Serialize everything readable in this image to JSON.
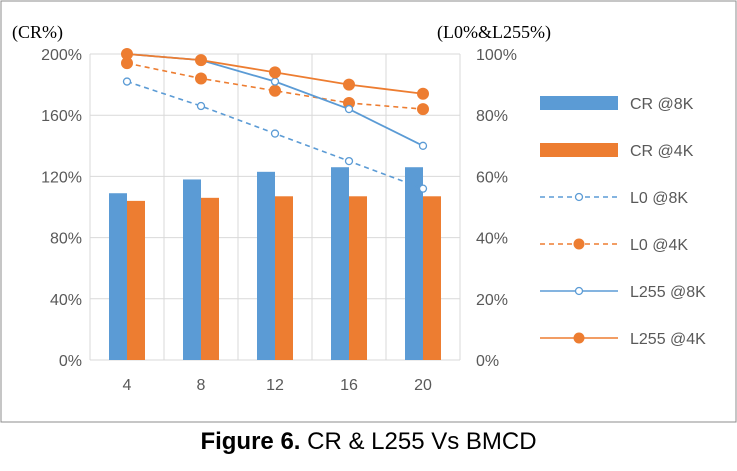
{
  "caption": {
    "label": "Figure 6.",
    "text": " CR & L255 Vs BMCD"
  },
  "chart_data": {
    "type": "bar",
    "title": "",
    "xlabel": "",
    "left_axis": {
      "label": "(CR%)",
      "ylim": [
        0,
        200
      ],
      "ticks": [
        "0%",
        "40%",
        "80%",
        "120%",
        "160%",
        "200%"
      ],
      "tick_values": [
        0,
        40,
        80,
        120,
        160,
        200
      ]
    },
    "right_axis": {
      "label": "(L0%&L255%)",
      "ylim": [
        0,
        100
      ],
      "ticks": [
        "0%",
        "20%",
        "40%",
        "60%",
        "80%",
        "100%"
      ],
      "tick_values": [
        0,
        20,
        40,
        60,
        80,
        100
      ]
    },
    "categories": [
      "4",
      "8",
      "12",
      "16",
      "20"
    ],
    "grid": true,
    "legend_position": "right",
    "series": [
      {
        "name": "CR @8K",
        "kind": "bar",
        "axis": "left",
        "color": "#5b9bd5",
        "values": [
          109,
          118,
          123,
          126,
          126
        ]
      },
      {
        "name": "CR @4K",
        "kind": "bar",
        "axis": "left",
        "color": "#ed7d31",
        "values": [
          104,
          106,
          107,
          107,
          107
        ]
      },
      {
        "name": "L0 @8K",
        "kind": "line",
        "axis": "right",
        "color": "#5b9bd5",
        "dashed": true,
        "marker": "open-circle",
        "values": [
          91,
          83,
          74,
          65,
          56
        ]
      },
      {
        "name": "L0 @4K",
        "kind": "line",
        "axis": "right",
        "color": "#ed7d31",
        "dashed": true,
        "marker": "filled-circle",
        "values": [
          97,
          92,
          88,
          84,
          82
        ]
      },
      {
        "name": "L255 @8K",
        "kind": "line",
        "axis": "right",
        "color": "#5b9bd5",
        "dashed": false,
        "marker": "open-circle",
        "values": [
          100,
          98,
          91,
          82,
          70
        ]
      },
      {
        "name": "L255 @4K",
        "kind": "line",
        "axis": "right",
        "color": "#ed7d31",
        "dashed": false,
        "marker": "filled-circle",
        "values": [
          100,
          98,
          94,
          90,
          87
        ]
      }
    ]
  }
}
